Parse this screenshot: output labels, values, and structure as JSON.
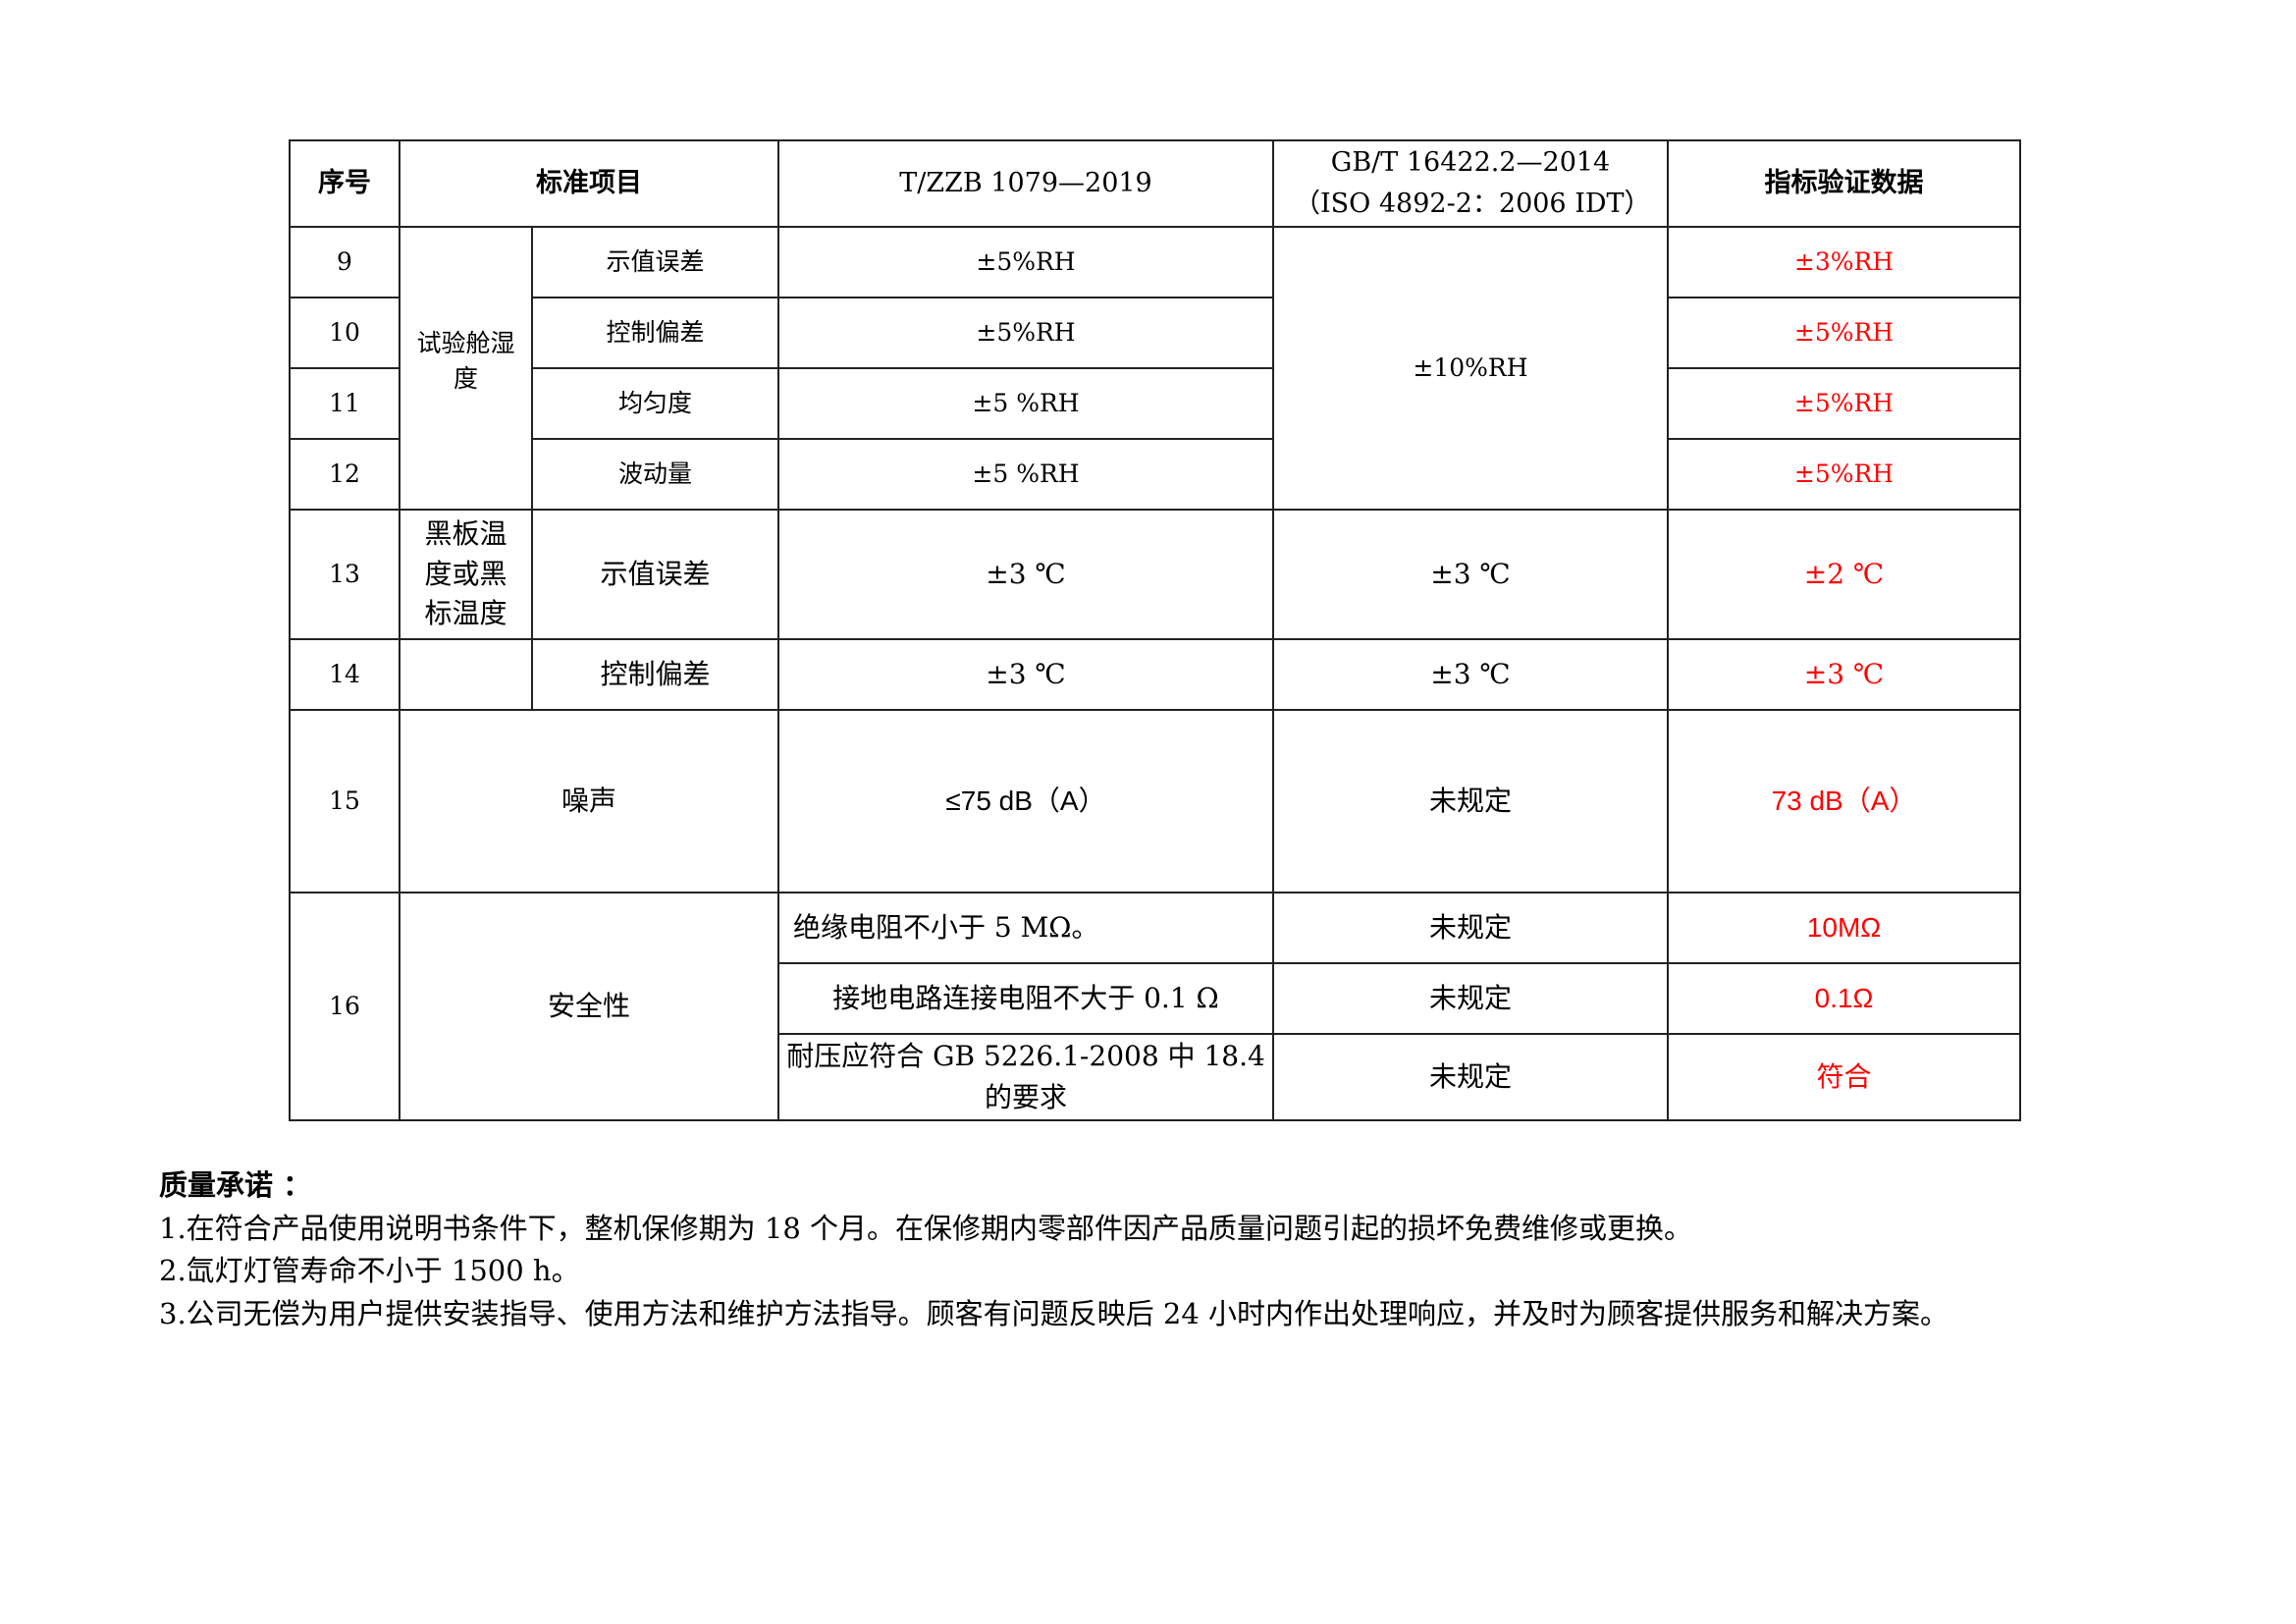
{
  "table": {
    "headers": [
      "序号",
      "标准项目",
      "T/ZZB 1079—2019",
      "GB/T 16422.2—2014（ISO 4892-2：2006 IDT）",
      "指标验证数据"
    ],
    "groups": {
      "humidity": "试验舱湿度",
      "blackpanel": "黑板温度或黑标温度",
      "humidity_gb": "±10%RH"
    },
    "rows": [
      {
        "no": "9",
        "item": "示值误差",
        "tzzb": "±5%RH",
        "result": "±3%RH"
      },
      {
        "no": "10",
        "item": "控制偏差",
        "tzzb": "±5%RH",
        "result": "±5%RH"
      },
      {
        "no": "11",
        "item": "均匀度",
        "tzzb": "±5 %RH",
        "result": "±5%RH"
      },
      {
        "no": "12",
        "item": "波动量",
        "tzzb": "±5 %RH",
        "result": "±5%RH"
      },
      {
        "no": "13",
        "item": "示值误差",
        "tzzb": "±3 ℃",
        "gb": "±3 ℃",
        "result": "±2 ℃"
      },
      {
        "no": "14",
        "item": "控制偏差",
        "tzzb": "±3 ℃",
        "gb": "±3 ℃",
        "result": "±3 ℃"
      },
      {
        "no": "15",
        "item": "噪声",
        "tzzb": "≤75 dB（A）",
        "gb": "未规定",
        "result": "73 dB（A）"
      },
      {
        "no": "16",
        "item": "安全性",
        "sub": [
          {
            "tzzb": "绝缘电阻不小于 5 MΩ。",
            "gb": "未规定",
            "result": "10MΩ"
          },
          {
            "tzzb": "接地电路连接电阻不大于 0.1 Ω",
            "gb": "未规定",
            "result": "0.1Ω"
          },
          {
            "tzzb": "耐压应符合 GB 5226.1-2008 中 18.4 的要求",
            "gb": "未规定",
            "result": "符合"
          }
        ]
      }
    ]
  },
  "quality": {
    "title": "质量承诺 ：",
    "items": [
      "1.在符合产品使用说明书条件下，整机保修期为 18 个月。在保修期内零部件因产品质量问题引起的损坏免费维修或更换。",
      "2.氙灯灯管寿命不小于 1500 h。",
      "3.公司无偿为用户提供安装指导、使用方法和维护方法指导。顾客有问题反映后 24 小时内作出处理响应，并及时为顾客提供服务和解决方案。"
    ]
  },
  "colors": {
    "result_text": "#ff0000",
    "border": "#222222"
  }
}
